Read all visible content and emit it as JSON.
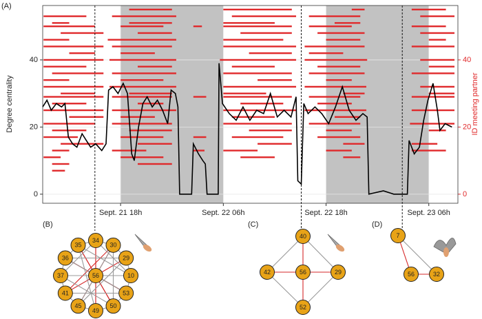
{
  "chart_data": {
    "type": "line",
    "panel_label": "(A)",
    "y_label": "Degree centrality",
    "y2_label": "ID meeting partner",
    "color": "#000000",
    "raster_color": "#e0292b",
    "grid": true,
    "xlim": [
      8.9,
      57.4
    ],
    "ylim": [
      -2.7,
      56.2
    ],
    "y2lim": [
      -2.7,
      56.2
    ],
    "xticks": [
      {
        "value": 18,
        "label": "Sept. 21 18h"
      },
      {
        "value": 30,
        "label": "Sept. 22 06h"
      },
      {
        "value": 42,
        "label": "Sept. 22 18h"
      },
      {
        "value": 54,
        "label": "Sept. 23 06h"
      }
    ],
    "yticks": [
      0,
      20,
      40
    ],
    "y2ticks": [
      0,
      20,
      40
    ],
    "shaded_intervals": [
      [
        18,
        30
      ],
      [
        42,
        54
      ]
    ],
    "event_lines": [
      15,
      39.1,
      50.9
    ],
    "x": [
      8.9,
      9.4,
      9.9,
      10.5,
      11.1,
      11.5,
      11.9,
      12.4,
      12.9,
      13.5,
      14.0,
      14.5,
      15.1,
      15.8,
      16.3,
      16.6,
      17.1,
      17.7,
      18.3,
      18.8,
      19.3,
      19.6,
      20.1,
      20.6,
      21.1,
      21.7,
      22.3,
      22.9,
      23.5,
      23.9,
      24.4,
      24.7,
      24.9,
      26.3,
      26.5,
      27.1,
      27.6,
      27.9,
      28.1,
      29.4,
      29.5,
      29.9,
      30.7,
      31.5,
      32.3,
      33.1,
      33.9,
      34.7,
      35.5,
      36.3,
      37.1,
      37.9,
      38.5,
      38.7,
      39.1,
      39.4,
      39.9,
      40.7,
      41.5,
      42.3,
      43.1,
      43.9,
      44.7,
      45.5,
      46.3,
      46.8,
      47.0,
      48.7,
      49.9,
      51.5,
      51.7,
      52.3,
      52.9,
      53.4,
      53.9,
      54.5,
      55.0,
      55.3,
      55.9,
      56.7
    ],
    "values": [
      26,
      28,
      25,
      27,
      26,
      27,
      17,
      15,
      14,
      18,
      16,
      14,
      15,
      13,
      15,
      31,
      32,
      30,
      33,
      30,
      12,
      10,
      20,
      27,
      29,
      26,
      28,
      25,
      21,
      31,
      30,
      26,
      0,
      0,
      15,
      12,
      10,
      9,
      0,
      0,
      39,
      27,
      24,
      22,
      26,
      22,
      25,
      24,
      30,
      23,
      25,
      23,
      29,
      4,
      3,
      27,
      24,
      26,
      24,
      21,
      26,
      32,
      25,
      22,
      24,
      23,
      0,
      1,
      0,
      0,
      16,
      12,
      14,
      22,
      28,
      33,
      25,
      19,
      21,
      20
    ],
    "meetings": [
      {
        "id": 55,
        "intervals": [
          [
            19,
            24
          ],
          [
            30,
            38
          ],
          [
            45,
            46.5
          ],
          [
            52,
            56
          ]
        ]
      },
      {
        "id": 53,
        "intervals": [
          [
            9,
            14
          ],
          [
            17,
            24.5
          ],
          [
            31,
            38.5
          ],
          [
            40,
            46
          ],
          [
            53,
            57
          ]
        ]
      },
      {
        "id": 51,
        "intervals": [
          [
            10,
            12
          ],
          [
            19,
            24
          ],
          [
            30,
            36
          ],
          [
            43,
            46
          ]
        ]
      },
      {
        "id": 50,
        "intervals": [
          [
            9,
            15
          ],
          [
            18,
            23
          ],
          [
            26.5,
            27.5
          ],
          [
            30,
            38
          ],
          [
            40,
            45
          ],
          [
            52,
            56
          ]
        ]
      },
      {
        "id": 48,
        "intervals": [
          [
            11,
            16
          ],
          [
            20,
            24
          ],
          [
            32,
            38
          ],
          [
            41,
            46.5
          ],
          [
            53,
            57
          ]
        ]
      },
      {
        "id": 46,
        "intervals": [
          [
            9,
            12
          ],
          [
            16.5,
            24.5
          ],
          [
            30,
            37
          ],
          [
            42,
            46
          ],
          [
            54,
            56
          ]
        ]
      },
      {
        "id": 44,
        "intervals": [
          [
            9,
            16
          ],
          [
            17,
            24
          ],
          [
            30,
            38.5
          ],
          [
            39.5,
            46.5
          ],
          [
            52,
            57
          ]
        ]
      },
      {
        "id": 42,
        "intervals": [
          [
            12,
            15
          ],
          [
            18,
            22
          ],
          [
            33,
            38
          ],
          [
            40,
            44
          ]
        ]
      },
      {
        "id": 40,
        "intervals": [
          [
            9,
            16
          ],
          [
            16.7,
            24.5
          ],
          [
            29.6,
            38.5
          ],
          [
            39.5,
            46.8
          ],
          [
            53,
            57
          ]
        ]
      },
      {
        "id": 38,
        "intervals": [
          [
            9,
            14
          ],
          [
            20,
            24
          ],
          [
            31,
            36
          ],
          [
            41,
            46
          ],
          [
            54,
            57
          ]
        ]
      },
      {
        "id": 36,
        "intervals": [
          [
            10,
            16
          ],
          [
            17,
            24.5
          ],
          [
            30,
            38
          ],
          [
            40,
            46.5
          ],
          [
            52,
            57
          ]
        ]
      },
      {
        "id": 34,
        "intervals": [
          [
            9,
            12
          ],
          [
            18,
            23
          ],
          [
            34,
            38
          ],
          [
            42,
            45
          ]
        ]
      },
      {
        "id": 32,
        "intervals": [
          [
            9,
            16
          ],
          [
            16.7,
            24.5
          ],
          [
            30,
            38.5
          ],
          [
            39.5,
            46.7
          ],
          [
            53,
            57
          ]
        ]
      },
      {
        "id": 30,
        "intervals": [
          [
            11,
            15
          ],
          [
            19,
            24
          ],
          [
            30,
            35
          ],
          [
            44,
            46.5
          ],
          [
            54,
            57
          ]
        ]
      },
      {
        "id": 29,
        "intervals": [
          [
            9,
            16
          ],
          [
            17,
            24
          ],
          [
            26.5,
            28
          ],
          [
            30,
            38
          ],
          [
            40,
            46
          ],
          [
            52,
            57
          ]
        ]
      },
      {
        "id": 27,
        "intervals": [
          [
            10,
            14
          ],
          [
            20,
            23
          ],
          [
            32,
            37
          ],
          [
            41,
            45
          ]
        ]
      },
      {
        "id": 25,
        "intervals": [
          [
            9,
            16
          ],
          [
            17,
            24.5
          ],
          [
            30,
            38.5
          ],
          [
            39.5,
            46.7
          ],
          [
            52,
            57
          ]
        ]
      },
      {
        "id": 23,
        "intervals": [
          [
            12,
            16
          ],
          [
            18,
            22
          ],
          [
            31,
            36
          ],
          [
            43,
            46
          ]
        ]
      },
      {
        "id": 21,
        "intervals": [
          [
            9,
            15
          ],
          [
            17,
            24
          ],
          [
            30,
            38
          ],
          [
            40,
            46
          ],
          [
            51.8,
            57
          ]
        ]
      },
      {
        "id": 19,
        "intervals": [
          [
            10,
            14
          ],
          [
            19,
            24
          ],
          [
            33,
            38
          ],
          [
            42,
            45
          ],
          [
            54,
            56
          ]
        ]
      },
      {
        "id": 17,
        "intervals": [
          [
            9,
            13
          ],
          [
            18,
            23
          ],
          [
            26.5,
            28
          ],
          [
            31,
            37
          ],
          [
            41,
            46
          ]
        ]
      },
      {
        "id": 15,
        "intervals": [
          [
            11,
            16
          ],
          [
            20,
            24
          ],
          [
            34,
            38
          ],
          [
            44,
            46.5
          ],
          [
            52,
            55
          ]
        ]
      },
      {
        "id": 13,
        "intervals": [
          [
            10,
            12
          ],
          [
            17,
            21
          ],
          [
            26.5,
            27.8
          ],
          [
            30,
            34
          ],
          [
            42,
            45
          ],
          [
            52,
            56
          ]
        ]
      },
      {
        "id": 11,
        "intervals": [
          [
            9,
            11
          ],
          [
            18,
            23
          ],
          [
            32,
            36
          ],
          [
            44,
            46
          ]
        ]
      },
      {
        "id": 9,
        "intervals": [
          [
            10,
            12
          ],
          [
            20,
            24
          ]
        ]
      },
      {
        "id": 7,
        "intervals": [
          [
            10,
            11.5
          ]
        ]
      }
    ]
  },
  "networks": [
    {
      "label": "(B)",
      "node_color": "#e8a317",
      "nodes": [
        "56",
        "34",
        "30",
        "29",
        "10",
        "53",
        "50",
        "49",
        "45",
        "41",
        "37",
        "36",
        "35"
      ],
      "edges": [
        {
          "from": 0,
          "to": 1,
          "color": "#d62728"
        },
        {
          "from": 0,
          "to": 2,
          "color": "#d62728"
        },
        {
          "from": 0,
          "to": 3,
          "color": "#d62728"
        },
        {
          "from": 0,
          "to": 4,
          "color": "#d62728"
        },
        {
          "from": 0,
          "to": 5,
          "color": "#d62728"
        },
        {
          "from": 0,
          "to": 6,
          "color": "#d62728"
        },
        {
          "from": 0,
          "to": 7,
          "color": "#d62728"
        },
        {
          "from": 0,
          "to": 8,
          "color": "#d62728"
        },
        {
          "from": 0,
          "to": 9,
          "color": "#d62728"
        },
        {
          "from": 0,
          "to": 10,
          "color": "#d62728"
        },
        {
          "from": 0,
          "to": 11,
          "color": "#d62728"
        },
        {
          "from": 0,
          "to": 12,
          "color": "#d62728"
        },
        {
          "from": 1,
          "to": 7,
          "color": "#d62728"
        },
        {
          "from": 12,
          "to": 6,
          "color": "#d62728"
        },
        {
          "from": 11,
          "to": 5,
          "color": "#d62728"
        },
        {
          "from": 2,
          "to": 9,
          "color": "#d62728"
        },
        {
          "from": 1,
          "to": 2,
          "color": "#999999"
        },
        {
          "from": 2,
          "to": 3,
          "color": "#999999"
        },
        {
          "from": 3,
          "to": 4,
          "color": "#999999"
        },
        {
          "from": 4,
          "to": 5,
          "color": "#999999"
        },
        {
          "from": 5,
          "to": 6,
          "color": "#999999"
        },
        {
          "from": 6,
          "to": 7,
          "color": "#999999"
        },
        {
          "from": 7,
          "to": 8,
          "color": "#999999"
        },
        {
          "from": 8,
          "to": 9,
          "color": "#999999"
        },
        {
          "from": 9,
          "to": 10,
          "color": "#999999"
        },
        {
          "from": 10,
          "to": 11,
          "color": "#999999"
        },
        {
          "from": 11,
          "to": 12,
          "color": "#999999"
        },
        {
          "from": 12,
          "to": 1,
          "color": "#999999"
        },
        {
          "from": 1,
          "to": 4,
          "color": "#999999"
        },
        {
          "from": 1,
          "to": 10,
          "color": "#999999"
        },
        {
          "from": 2,
          "to": 6,
          "color": "#999999"
        },
        {
          "from": 3,
          "to": 8,
          "color": "#999999"
        },
        {
          "from": 4,
          "to": 10,
          "color": "#999999"
        },
        {
          "from": 5,
          "to": 11,
          "color": "#999999"
        },
        {
          "from": 12,
          "to": 4,
          "color": "#999999"
        },
        {
          "from": 11,
          "to": 3,
          "color": "#999999"
        },
        {
          "from": 9,
          "to": 5,
          "color": "#999999"
        },
        {
          "from": 8,
          "to": 2,
          "color": "#999999"
        },
        {
          "from": 12,
          "to": 7,
          "color": "#999999"
        },
        {
          "from": 10,
          "to": 6,
          "color": "#999999"
        }
      ]
    },
    {
      "label": "(C)",
      "node_color": "#e8a317",
      "nodes": [
        "40",
        "42",
        "56",
        "29",
        "52"
      ],
      "edges": [
        {
          "from": 0,
          "to": 2,
          "color": "#d62728"
        },
        {
          "from": 1,
          "to": 2,
          "color": "#d62728"
        },
        {
          "from": 2,
          "to": 3,
          "color": "#d62728"
        },
        {
          "from": 2,
          "to": 4,
          "color": "#d62728"
        },
        {
          "from": 0,
          "to": 1,
          "color": "#999999"
        },
        {
          "from": 0,
          "to": 3,
          "color": "#999999"
        },
        {
          "from": 1,
          "to": 4,
          "color": "#999999"
        },
        {
          "from": 3,
          "to": 4,
          "color": "#999999"
        }
      ]
    },
    {
      "label": "(D)",
      "node_color": "#e8a317",
      "nodes": [
        "7",
        "56",
        "32"
      ],
      "edges": [
        {
          "from": 0,
          "to": 1,
          "color": "#d62728"
        },
        {
          "from": 1,
          "to": 2,
          "color": "#d62728"
        },
        {
          "from": 0,
          "to": 2,
          "color": "#999999"
        }
      ]
    }
  ]
}
